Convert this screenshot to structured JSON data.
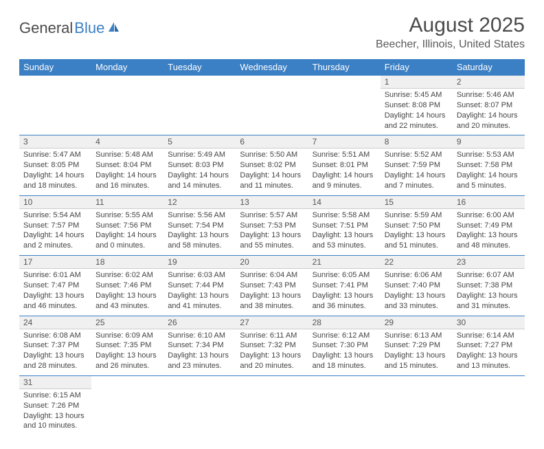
{
  "logo": {
    "text1": "General",
    "text2": "Blue"
  },
  "title": "August 2025",
  "location": "Beecher, Illinois, United States",
  "colors": {
    "header_bg": "#3b7fc4",
    "header_fg": "#ffffff",
    "daynum_bg": "#f0f0f0",
    "border": "#3b7fc4",
    "text": "#444444"
  },
  "dayHeaders": [
    "Sunday",
    "Monday",
    "Tuesday",
    "Wednesday",
    "Thursday",
    "Friday",
    "Saturday"
  ],
  "weeks": [
    [
      null,
      null,
      null,
      null,
      null,
      {
        "n": "1",
        "sr": "5:45 AM",
        "ss": "8:08 PM",
        "dl": "14 hours and 22 minutes."
      },
      {
        "n": "2",
        "sr": "5:46 AM",
        "ss": "8:07 PM",
        "dl": "14 hours and 20 minutes."
      }
    ],
    [
      {
        "n": "3",
        "sr": "5:47 AM",
        "ss": "8:05 PM",
        "dl": "14 hours and 18 minutes."
      },
      {
        "n": "4",
        "sr": "5:48 AM",
        "ss": "8:04 PM",
        "dl": "14 hours and 16 minutes."
      },
      {
        "n": "5",
        "sr": "5:49 AM",
        "ss": "8:03 PM",
        "dl": "14 hours and 14 minutes."
      },
      {
        "n": "6",
        "sr": "5:50 AM",
        "ss": "8:02 PM",
        "dl": "14 hours and 11 minutes."
      },
      {
        "n": "7",
        "sr": "5:51 AM",
        "ss": "8:01 PM",
        "dl": "14 hours and 9 minutes."
      },
      {
        "n": "8",
        "sr": "5:52 AM",
        "ss": "7:59 PM",
        "dl": "14 hours and 7 minutes."
      },
      {
        "n": "9",
        "sr": "5:53 AM",
        "ss": "7:58 PM",
        "dl": "14 hours and 5 minutes."
      }
    ],
    [
      {
        "n": "10",
        "sr": "5:54 AM",
        "ss": "7:57 PM",
        "dl": "14 hours and 2 minutes."
      },
      {
        "n": "11",
        "sr": "5:55 AM",
        "ss": "7:56 PM",
        "dl": "14 hours and 0 minutes."
      },
      {
        "n": "12",
        "sr": "5:56 AM",
        "ss": "7:54 PM",
        "dl": "13 hours and 58 minutes."
      },
      {
        "n": "13",
        "sr": "5:57 AM",
        "ss": "7:53 PM",
        "dl": "13 hours and 55 minutes."
      },
      {
        "n": "14",
        "sr": "5:58 AM",
        "ss": "7:51 PM",
        "dl": "13 hours and 53 minutes."
      },
      {
        "n": "15",
        "sr": "5:59 AM",
        "ss": "7:50 PM",
        "dl": "13 hours and 51 minutes."
      },
      {
        "n": "16",
        "sr": "6:00 AM",
        "ss": "7:49 PM",
        "dl": "13 hours and 48 minutes."
      }
    ],
    [
      {
        "n": "17",
        "sr": "6:01 AM",
        "ss": "7:47 PM",
        "dl": "13 hours and 46 minutes."
      },
      {
        "n": "18",
        "sr": "6:02 AM",
        "ss": "7:46 PM",
        "dl": "13 hours and 43 minutes."
      },
      {
        "n": "19",
        "sr": "6:03 AM",
        "ss": "7:44 PM",
        "dl": "13 hours and 41 minutes."
      },
      {
        "n": "20",
        "sr": "6:04 AM",
        "ss": "7:43 PM",
        "dl": "13 hours and 38 minutes."
      },
      {
        "n": "21",
        "sr": "6:05 AM",
        "ss": "7:41 PM",
        "dl": "13 hours and 36 minutes."
      },
      {
        "n": "22",
        "sr": "6:06 AM",
        "ss": "7:40 PM",
        "dl": "13 hours and 33 minutes."
      },
      {
        "n": "23",
        "sr": "6:07 AM",
        "ss": "7:38 PM",
        "dl": "13 hours and 31 minutes."
      }
    ],
    [
      {
        "n": "24",
        "sr": "6:08 AM",
        "ss": "7:37 PM",
        "dl": "13 hours and 28 minutes."
      },
      {
        "n": "25",
        "sr": "6:09 AM",
        "ss": "7:35 PM",
        "dl": "13 hours and 26 minutes."
      },
      {
        "n": "26",
        "sr": "6:10 AM",
        "ss": "7:34 PM",
        "dl": "13 hours and 23 minutes."
      },
      {
        "n": "27",
        "sr": "6:11 AM",
        "ss": "7:32 PM",
        "dl": "13 hours and 20 minutes."
      },
      {
        "n": "28",
        "sr": "6:12 AM",
        "ss": "7:30 PM",
        "dl": "13 hours and 18 minutes."
      },
      {
        "n": "29",
        "sr": "6:13 AM",
        "ss": "7:29 PM",
        "dl": "13 hours and 15 minutes."
      },
      {
        "n": "30",
        "sr": "6:14 AM",
        "ss": "7:27 PM",
        "dl": "13 hours and 13 minutes."
      }
    ],
    [
      {
        "n": "31",
        "sr": "6:15 AM",
        "ss": "7:26 PM",
        "dl": "13 hours and 10 minutes."
      },
      null,
      null,
      null,
      null,
      null,
      null
    ]
  ],
  "labels": {
    "sunrise": "Sunrise:",
    "sunset": "Sunset:",
    "daylight": "Daylight:"
  }
}
